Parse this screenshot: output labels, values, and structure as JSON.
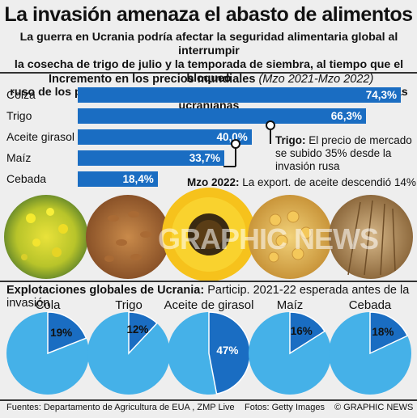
{
  "header": {
    "title": "La invasión amenaza el abasto de alimentos",
    "subtitle_lines": [
      "La guerra en Ucrania podría afectar la seguridad alimentaria global al interrumpir",
      "la cosecha de trigo de julio y la temporada de siembra, al tiempo que el bloqueo",
      "ruso de los puertos del Mar Negro impactará las exportaciones agrícolas ucranianas"
    ]
  },
  "chart_data": [
    {
      "type": "bar",
      "title": "Incremento en los precios mundiales",
      "subtitle": "(Mzo 2021-Mzo 2022)",
      "categories": [
        "Colza",
        "Trigo",
        "Aceite girasol",
        "Maíz",
        "Cebada"
      ],
      "values": [
        74.3,
        66.3,
        40.0,
        33.7,
        18.4
      ],
      "value_labels": [
        "74,3%",
        "66,3%",
        "40,0%",
        "33,7%",
        "18,4%"
      ],
      "xlim": [
        0,
        74.3
      ],
      "annotations": [
        {
          "bold": "Trigo:",
          "text_lines": [
            " El precio de mercado",
            "se subido 35% desde la",
            "invasión rusa"
          ]
        },
        {
          "bold": "Mzo 2022:",
          "text": " La export. de aceite descendió 14%"
        }
      ]
    },
    {
      "type": "pie",
      "title": "Explotaciones globales de Ucrania:",
      "subtitle": "Particip. 2021-22 esperada antes de la invasión",
      "categories": [
        "Cola",
        "Trigo",
        "Aceite de girasol",
        "Maíz",
        "Cebada"
      ],
      "values": [
        19,
        12,
        47,
        16,
        18
      ],
      "value_labels": [
        "19%",
        "12%",
        "47%",
        "16%",
        "18%"
      ],
      "colors": {
        "share": "#1a6dc2",
        "rest": "#45b1e8"
      }
    }
  ],
  "footer": {
    "sources": "Fuentes: Departamento de Agricultura de EUA , ZMP Live",
    "photos": "Fotos: Getty Images",
    "credit": "© GRAPHIC NEWS"
  },
  "watermark": "GRAPHIC NEWS"
}
